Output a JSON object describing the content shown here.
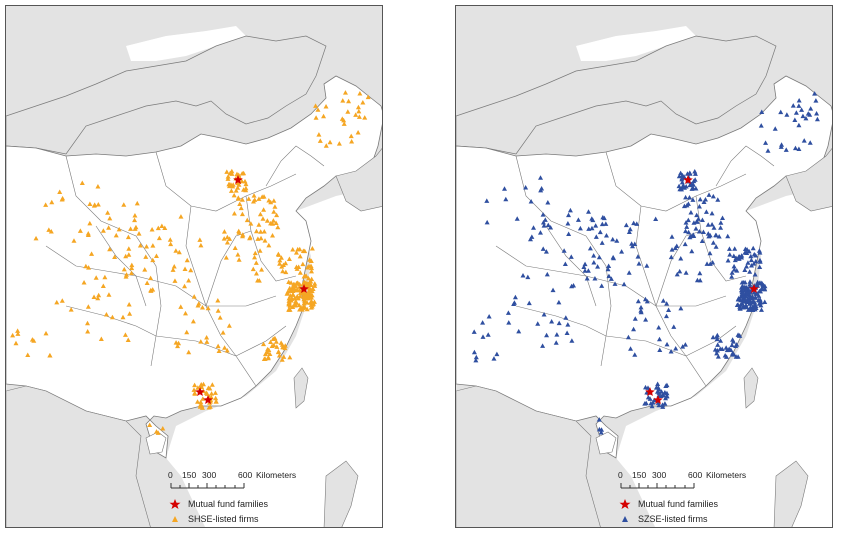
{
  "colors": {
    "land_other": "#e3e3e3",
    "land_china": "#ffffff",
    "water": "#ffffff",
    "boundary": "#7a7a7a",
    "star": "#d40000",
    "shse": "#f5a623",
    "szse": "#2f4fa0"
  },
  "panels": [
    {
      "id": "shse",
      "legend": {
        "fund_label": "Mutual fund families",
        "firm_label": "SHSE-listed firms",
        "fund_icon": "red-star-icon",
        "firm_icon": "orange-triangle-icon"
      },
      "scale": {
        "ticks": [
          "0",
          "150",
          "300",
          "600"
        ],
        "unit": "Kilometers"
      }
    },
    {
      "id": "szse",
      "legend": {
        "fund_label": "Mutual fund families",
        "firm_label": "SZSE-listed firms",
        "fund_icon": "red-star-icon",
        "firm_icon": "blue-triangle-icon"
      },
      "scale": {
        "ticks": [
          "0",
          "150",
          "300",
          "600"
        ],
        "unit": "Kilometers"
      }
    }
  ]
}
